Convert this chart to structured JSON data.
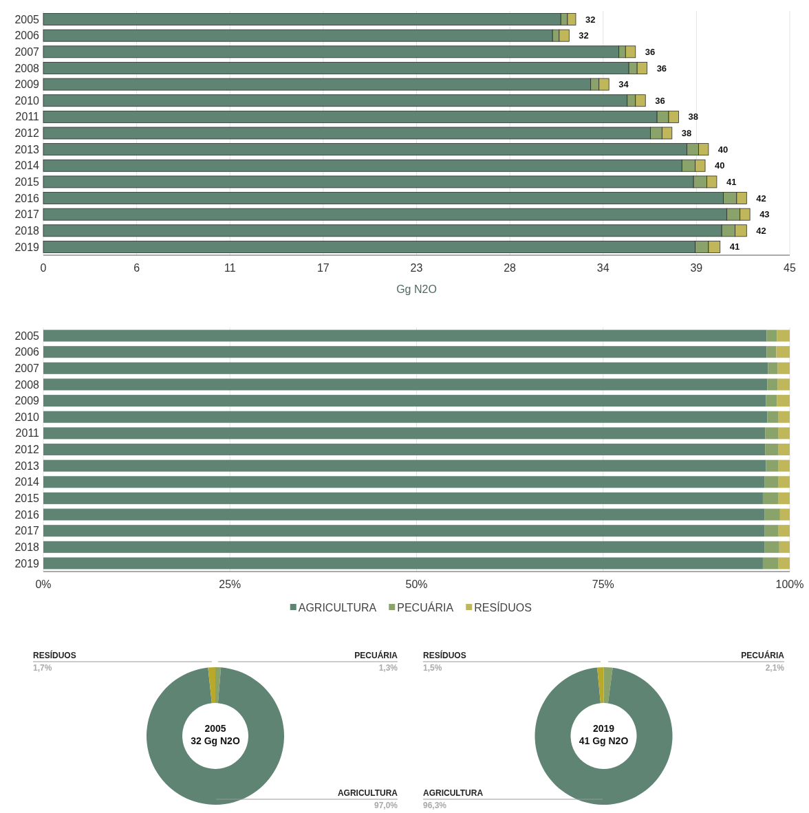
{
  "chart_data": [
    {
      "type": "bar",
      "orientation": "horizontal",
      "stacked": true,
      "categories": [
        "2005",
        "2006",
        "2007",
        "2008",
        "2009",
        "2010",
        "2011",
        "2012",
        "2013",
        "2014",
        "2015",
        "2016",
        "2017",
        "2018",
        "2019"
      ],
      "series": [
        {
          "color": "#5f8473",
          "values": [
            31.2,
            30.7,
            34.7,
            35.3,
            33.0,
            35.2,
            37.0,
            36.6,
            38.8,
            38.5,
            39.2,
            41.0,
            41.2,
            40.9,
            39.3
          ]
        },
        {
          "color": "#8aa36b",
          "values": [
            0.4,
            0.4,
            0.4,
            0.5,
            0.5,
            0.5,
            0.7,
            0.7,
            0.7,
            0.8,
            0.8,
            0.8,
            0.8,
            0.8,
            0.8
          ]
        },
        {
          "color": "#bfb75a",
          "values": [
            0.5,
            0.6,
            0.6,
            0.6,
            0.6,
            0.6,
            0.6,
            0.6,
            0.6,
            0.6,
            0.6,
            0.6,
            0.6,
            0.7,
            0.7
          ]
        }
      ],
      "totals": [
        "32",
        "32",
        "36",
        "36",
        "34",
        "36",
        "38",
        "38",
        "40",
        "40",
        "41",
        "42",
        "43",
        "42",
        "41"
      ],
      "xlim": [
        0,
        45
      ],
      "xticks": [
        0,
        {
          "value": 5.625,
          "label": "6"
        },
        {
          "value": 11.25,
          "label": "11"
        },
        {
          "value": 16.875,
          "label": "17"
        },
        {
          "value": 22.5,
          "label": "23"
        },
        {
          "value": 28.125,
          "label": "28"
        },
        {
          "value": 33.75,
          "label": "34"
        },
        {
          "value": 39.375,
          "label": "39"
        },
        45
      ],
      "xlabel": "Gg N2O",
      "grid": "x"
    },
    {
      "type": "bar",
      "orientation": "horizontal",
      "stacked": true,
      "categories": [
        "2005",
        "2006",
        "2007",
        "2008",
        "2009",
        "2010",
        "2011",
        "2012",
        "2013",
        "2014",
        "2015",
        "2016",
        "2017",
        "2018",
        "2019"
      ],
      "series": [
        {
          "name": "AGRICULTURA",
          "color": "#5f8473",
          "values": [
            96.9,
            96.9,
            97.1,
            97.0,
            96.8,
            97.0,
            96.7,
            96.7,
            96.8,
            96.6,
            96.4,
            96.6,
            96.6,
            96.6,
            96.4
          ]
        },
        {
          "name": "PECUÁRIA",
          "color": "#8aa36b",
          "values": [
            1.4,
            1.3,
            1.3,
            1.4,
            1.5,
            1.5,
            1.8,
            1.8,
            1.7,
            1.9,
            2.1,
            2.1,
            1.9,
            2.0,
            2.1
          ]
        },
        {
          "name": "RESÍDUOS",
          "color": "#bfb75a",
          "values": [
            1.7,
            1.8,
            1.6,
            1.6,
            1.7,
            1.5,
            1.5,
            1.5,
            1.5,
            1.5,
            1.5,
            1.3,
            1.5,
            1.4,
            1.5
          ]
        }
      ],
      "xlim": [
        0,
        100
      ],
      "xticks": [
        {
          "value": 0,
          "label": "0%"
        },
        {
          "value": 25,
          "label": "25%"
        },
        {
          "value": 50,
          "label": "50%"
        },
        {
          "value": 75,
          "label": "75%"
        },
        {
          "value": 100,
          "label": "100%"
        }
      ],
      "grid": "x",
      "legend": "bottom"
    },
    {
      "type": "donut",
      "title": "2005",
      "subtitle": "32 Gg N2O",
      "categories": [
        "PECUÁRIA",
        "AGRICULTURA",
        "RESÍDUOS"
      ],
      "values": [
        1.3,
        97.0,
        1.7
      ],
      "colors": [
        "#8aa36b",
        "#5f8473",
        "#b8a92a"
      ],
      "value_labels": [
        "1,3%",
        "97,0%",
        "1,7%"
      ]
    },
    {
      "type": "donut",
      "title": "2019",
      "subtitle": "41 Gg N2O",
      "categories": [
        "PECUÁRIA",
        "AGRICULTURA",
        "RESÍDUOS"
      ],
      "values": [
        2.1,
        96.3,
        1.5
      ],
      "colors": [
        "#8aa36b",
        "#5f8473",
        "#b8a92a"
      ],
      "value_labels": [
        "2,1%",
        "96,3%",
        "1,5%"
      ]
    }
  ]
}
